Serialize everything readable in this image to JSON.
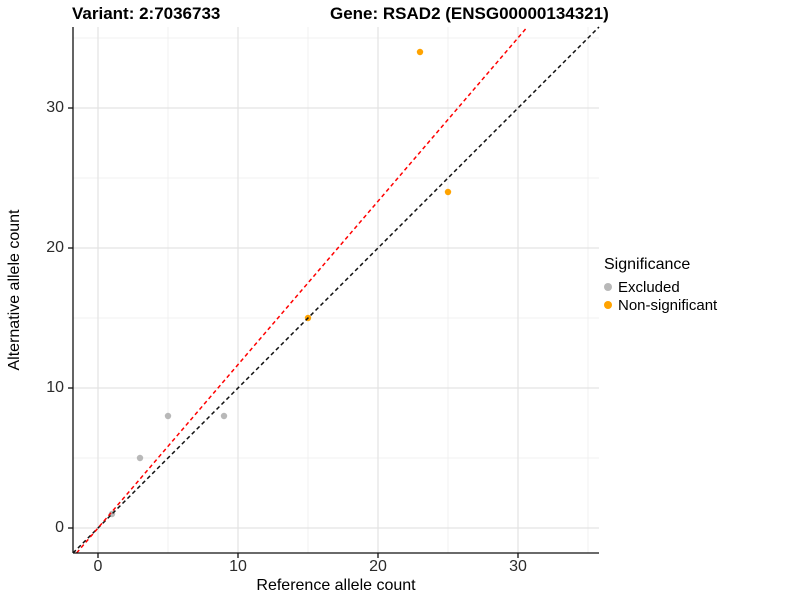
{
  "chart_data": {
    "type": "scatter",
    "title_left": "Variant: 2:7036733",
    "title_right": "Gene: RSAD2 (ENSG00000134321)",
    "xlabel": "Reference allele count",
    "ylabel": "Alternative allele count",
    "xlim": [
      -1.8,
      35.8
    ],
    "ylim": [
      -1.8,
      35.8
    ],
    "x_ticks": [
      "0",
      "10",
      "20",
      "30"
    ],
    "y_ticks": [
      "0",
      "10",
      "20",
      "30"
    ],
    "x_tick_values": [
      0,
      10,
      20,
      30
    ],
    "y_tick_values": [
      0,
      10,
      20,
      30
    ],
    "x_minor": [
      5,
      15,
      25,
      35
    ],
    "y_minor": [
      5,
      15,
      25,
      35
    ],
    "grid": true,
    "legend": {
      "title": "Significance",
      "position": "right",
      "entries": [
        {
          "label": "Excluded",
          "color": "#b8b8b8"
        },
        {
          "label": "Non-significant",
          "color": "#ffa300"
        }
      ]
    },
    "series": [
      {
        "name": "Excluded",
        "color": "#b8b8b8",
        "points": [
          [
            1,
            1
          ],
          [
            3,
            5
          ],
          [
            5,
            8
          ],
          [
            9,
            8
          ]
        ]
      },
      {
        "name": "Non-significant",
        "color": "#ffa300",
        "points": [
          [
            15,
            15
          ],
          [
            25,
            24
          ],
          [
            23,
            34
          ]
        ]
      }
    ],
    "reference_lines": [
      {
        "name": "identity-line",
        "color": "#111111",
        "slope": 1.0,
        "intercept": 0,
        "style": "dashed"
      },
      {
        "name": "expected-ratio-line",
        "color": "#ff0000",
        "slope": 1.167,
        "intercept": 0,
        "style": "dashed"
      }
    ],
    "colors": {
      "grid_major": "#e3e3e3",
      "grid_minor": "#f0f0f0",
      "axis_line": "#111111",
      "tick_text": "#2b2b2b"
    }
  }
}
